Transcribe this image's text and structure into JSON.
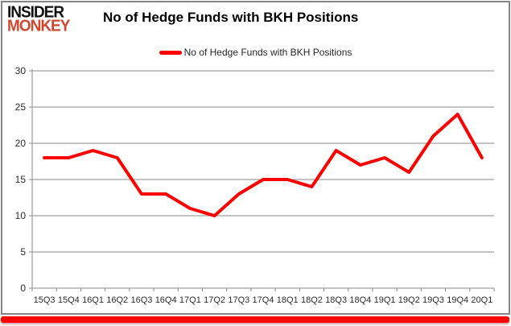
{
  "logo": {
    "line1": "INSIDER",
    "line2": "MONKEY"
  },
  "header": {
    "title": "No of Hedge Funds with BKH Positions"
  },
  "legend": {
    "label": "No of Hedge Funds with BKH Positions"
  },
  "colors": {
    "line": "#ff0000",
    "grid": "#8a8a8a",
    "axis_text": "#2b2b2b",
    "logo_black": "#111111",
    "logo_red": "#d3462f",
    "panel_border": "#858585",
    "bottom_bar": "#fb0200"
  },
  "chart_data": {
    "type": "line",
    "title": "No of Hedge Funds with BKH Positions",
    "categories": [
      "15Q3",
      "15Q4",
      "16Q1",
      "16Q2",
      "16Q3",
      "16Q4",
      "17Q1",
      "17Q2",
      "17Q3",
      "17Q4",
      "18Q1",
      "18Q2",
      "18Q3",
      "18Q4",
      "19Q1",
      "19Q2",
      "19Q3",
      "19Q4",
      "20Q1"
    ],
    "series": [
      {
        "name": "No of Hedge Funds with BKH Positions",
        "values": [
          18,
          18,
          19,
          18,
          13,
          13,
          11,
          10,
          13,
          15,
          15,
          14,
          19,
          17,
          18,
          16,
          21,
          24,
          18
        ]
      }
    ],
    "xlabel": "",
    "ylabel": "",
    "ylim": [
      0,
      30
    ],
    "yticks": [
      0,
      5,
      10,
      15,
      20,
      25,
      30
    ],
    "grid": true,
    "legend_position": "top"
  }
}
